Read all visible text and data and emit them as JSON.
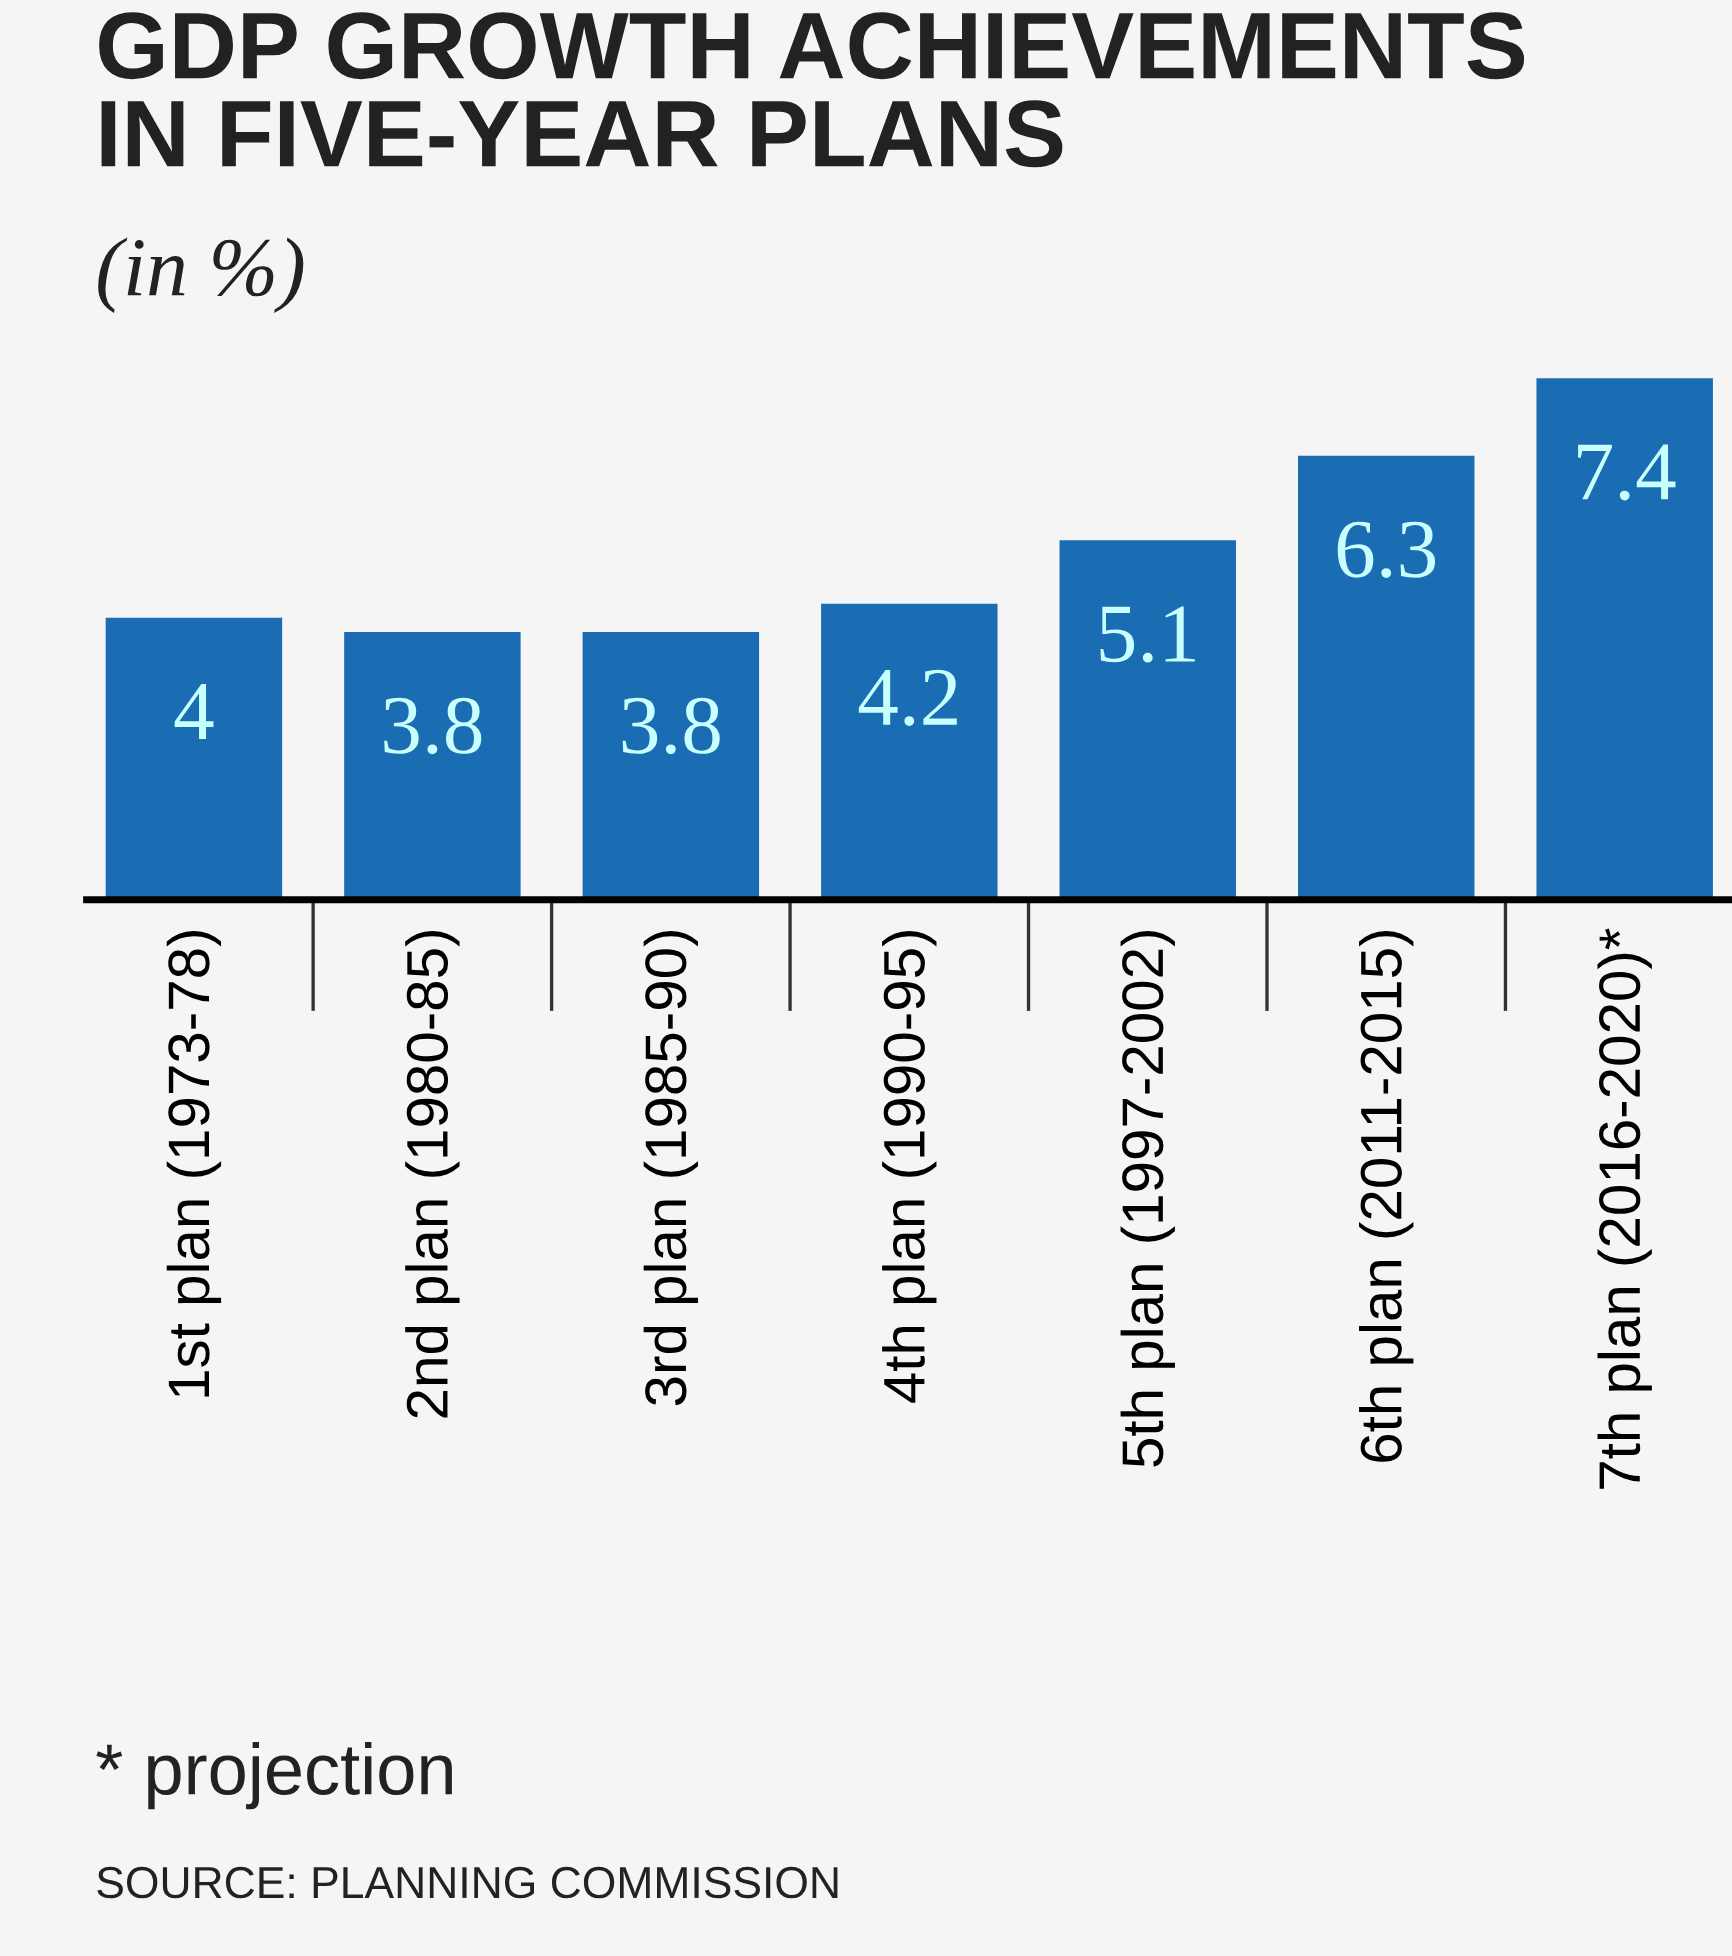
{
  "chart_data": {
    "type": "bar",
    "title": "GDP GROWTH ACHIEVEMENTS\nIN FIVE-YEAR PLANS",
    "subtitle": "(in %)",
    "categories": [
      "1st plan (1973-78)",
      "2nd plan (1980-85)",
      "3rd plan (1985-90)",
      "4th plan (1990-95)",
      "5th plan (1997-2002)",
      "6th plan (2011-2015)",
      "7th plan (2016-2020)*"
    ],
    "values": [
      4,
      3.8,
      3.8,
      4.2,
      5.1,
      6.3,
      7.4
    ],
    "color": "#1b6db3",
    "data_labels": true,
    "grid": false,
    "legend": false,
    "annotations": [
      "* projection",
      "SOURCE: PLANNING COMMISSION"
    ]
  }
}
